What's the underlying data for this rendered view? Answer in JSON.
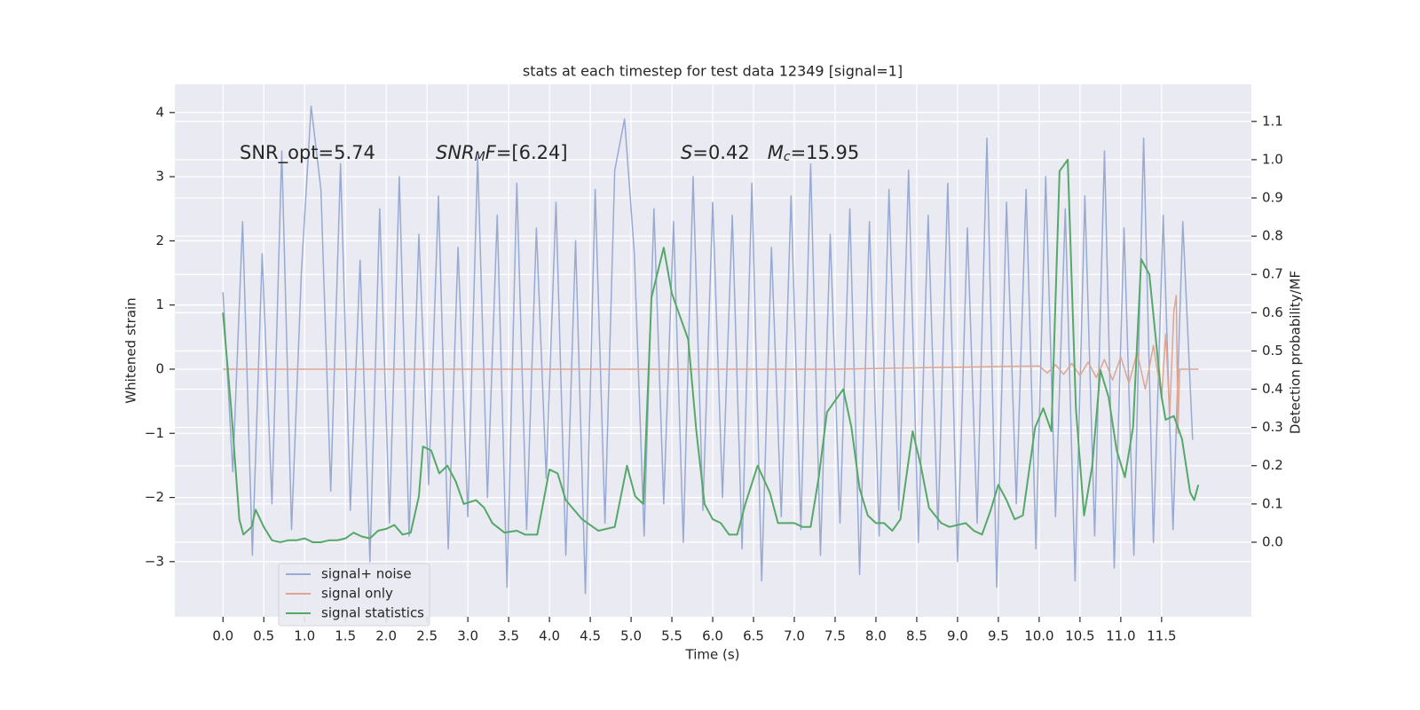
{
  "chart_data": {
    "type": "line",
    "title": "stats at each timestep for test data 12349 [signal=1]",
    "xlabel": "Time (s)",
    "ylabel": "Whitened strain",
    "y2label": "Detection probability/MF",
    "xlim": [
      -0.59,
      12.6
    ],
    "ylim": [
      -3.86,
      4.44
    ],
    "y2lim": [
      -0.195,
      1.197
    ],
    "xticks": [
      {
        "value": 0,
        "label": "0.0"
      },
      {
        "value": 0.5,
        "label": "0.5"
      },
      {
        "value": 1,
        "label": "1.0"
      },
      {
        "value": 1.5,
        "label": "1.5"
      },
      {
        "value": 2,
        "label": "2.0"
      },
      {
        "value": 2.5,
        "label": "2.5"
      },
      {
        "value": 3,
        "label": "3.0"
      },
      {
        "value": 3.5,
        "label": "3.5"
      },
      {
        "value": 4,
        "label": "4.0"
      },
      {
        "value": 4.5,
        "label": "4.5"
      },
      {
        "value": 5,
        "label": "5.0"
      },
      {
        "value": 5.5,
        "label": "5.5"
      },
      {
        "value": 6,
        "label": "6.0"
      },
      {
        "value": 6.5,
        "label": "6.5"
      },
      {
        "value": 7,
        "label": "7.0"
      },
      {
        "value": 7.5,
        "label": "7.5"
      },
      {
        "value": 8,
        "label": "8.0"
      },
      {
        "value": 8.5,
        "label": "8.5"
      },
      {
        "value": 9,
        "label": "9.0"
      },
      {
        "value": 9.5,
        "label": "9.5"
      },
      {
        "value": 10,
        "label": "10.0"
      },
      {
        "value": 10.5,
        "label": "10.5"
      },
      {
        "value": 11,
        "label": "11.0"
      },
      {
        "value": 11.5,
        "label": "11.5"
      }
    ],
    "yticks": [
      {
        "value": -3,
        "label": "−3"
      },
      {
        "value": -2,
        "label": "−2"
      },
      {
        "value": -1,
        "label": "−1"
      },
      0,
      1,
      2,
      3,
      4
    ],
    "y2ticks": [
      {
        "value": 0,
        "label": "0.0"
      },
      {
        "value": 0.1,
        "label": "0.1"
      },
      {
        "value": 0.2,
        "label": "0.2"
      },
      {
        "value": 0.3,
        "label": "0.3"
      },
      {
        "value": 0.4,
        "label": "0.4"
      },
      {
        "value": 0.5,
        "label": "0.5"
      },
      {
        "value": 0.6,
        "label": "0.6"
      },
      {
        "value": 0.7,
        "label": "0.7"
      },
      {
        "value": 0.8,
        "label": "0.8"
      },
      {
        "value": 0.9,
        "label": "0.9"
      },
      {
        "value": 1,
        "label": "1.0"
      },
      {
        "value": 1.1,
        "label": "1.1"
      }
    ],
    "grid": true,
    "legend_loc": "lower left",
    "annotations": [
      [
        {
          "text": "SNR_opt=5.74",
          "style": "normal"
        }
      ],
      [
        {
          "text": "SNR",
          "style": "italic"
        },
        {
          "text": "M",
          "style": "sub"
        },
        {
          "text": "F",
          "style": "italic"
        },
        {
          "text": "=[6.24]",
          "style": "normal"
        }
      ],
      [
        {
          "text": "S",
          "style": "italic"
        },
        {
          "text": "=0.42   ",
          "style": "normal"
        },
        {
          "text": "M",
          "style": "italic"
        },
        {
          "text": "c",
          "style": "sub"
        },
        {
          "text": "=15.95",
          "style": "normal"
        }
      ]
    ],
    "series": [
      {
        "name": "signal+ noise",
        "color": "#98aad1",
        "axis": "y",
        "x": [
          0,
          0.12,
          0.24,
          0.36,
          0.48,
          0.6,
          0.72,
          0.84,
          0.96,
          1.08,
          1.2,
          1.32,
          1.44,
          1.56,
          1.68,
          1.8,
          1.92,
          2.04,
          2.16,
          2.28,
          2.4,
          2.52,
          2.64,
          2.76,
          2.88,
          3.0,
          3.12,
          3.24,
          3.36,
          3.48,
          3.6,
          3.72,
          3.84,
          3.96,
          4.08,
          4.2,
          4.32,
          4.44,
          4.56,
          4.68,
          4.8,
          4.92,
          5.04,
          5.16,
          5.28,
          5.4,
          5.52,
          5.64,
          5.76,
          5.88,
          6.0,
          6.12,
          6.24,
          6.36,
          6.48,
          6.6,
          6.72,
          6.84,
          6.96,
          7.08,
          7.2,
          7.32,
          7.44,
          7.56,
          7.68,
          7.8,
          7.92,
          8.04,
          8.16,
          8.28,
          8.4,
          8.52,
          8.64,
          8.76,
          8.88,
          9.0,
          9.12,
          9.24,
          9.36,
          9.48,
          9.6,
          9.72,
          9.84,
          9.96,
          10.08,
          10.2,
          10.32,
          10.44,
          10.56,
          10.68,
          10.8,
          10.92,
          11.04,
          11.16,
          11.28,
          11.4,
          11.52,
          11.64,
          11.76,
          11.88
        ],
        "values": [
          1.2,
          -1.6,
          2.3,
          -2.9,
          1.8,
          -2.1,
          3.4,
          -2.5,
          1.5,
          4.1,
          2.8,
          -1.9,
          3.2,
          -2.2,
          1.7,
          -3.0,
          2.5,
          -2.4,
          3.0,
          -2.6,
          2.1,
          -1.8,
          2.7,
          -2.8,
          1.9,
          -2.3,
          3.3,
          -2.0,
          2.4,
          -3.4,
          2.9,
          -2.5,
          2.2,
          -1.7,
          2.6,
          -2.9,
          2.0,
          -3.5,
          2.8,
          -2.4,
          3.1,
          3.9,
          1.8,
          -2.6,
          2.5,
          -2.1,
          2.3,
          -2.7,
          3.0,
          -2.2,
          2.6,
          -2.0,
          2.4,
          -2.8,
          2.9,
          -3.3,
          1.9,
          -2.3,
          2.7,
          -2.5,
          3.2,
          -2.9,
          2.1,
          -2.4,
          2.5,
          -3.2,
          2.3,
          -2.6,
          2.8,
          -2.2,
          3.1,
          -2.7,
          2.4,
          -2.5,
          2.9,
          -3.0,
          2.2,
          -2.4,
          3.6,
          -3.4,
          2.6,
          -2.1,
          2.8,
          -2.8,
          3.0,
          -2.3,
          2.5,
          -3.3,
          2.7,
          -2.6,
          3.4,
          -3.1,
          2.2,
          -2.9,
          3.6,
          -2.7,
          2.4,
          -2.5,
          2.3,
          -1.1
        ]
      },
      {
        "name": "signal only",
        "color": "#dda592",
        "axis": "y",
        "x": [
          0,
          7.5,
          10.0,
          10.1,
          10.2,
          10.3,
          10.4,
          10.5,
          10.6,
          10.7,
          10.8,
          10.9,
          11.0,
          11.1,
          11.2,
          11.3,
          11.4,
          11.5,
          11.55,
          11.6,
          11.65,
          11.68,
          11.7,
          11.72,
          11.95
        ],
        "values": [
          0,
          0,
          0.05,
          -0.06,
          0.07,
          -0.08,
          0.09,
          -0.1,
          0.11,
          -0.13,
          0.15,
          -0.17,
          0.19,
          -0.22,
          0.26,
          -0.31,
          0.37,
          -0.45,
          0.55,
          -0.7,
          0.9,
          1.15,
          -1.0,
          0,
          0
        ]
      },
      {
        "name": "signal statistics",
        "color": "#55a868",
        "axis": "y2",
        "x": [
          0.0,
          0.1,
          0.2,
          0.25,
          0.35,
          0.4,
          0.5,
          0.6,
          0.7,
          0.8,
          0.9,
          1.0,
          1.1,
          1.2,
          1.3,
          1.4,
          1.5,
          1.6,
          1.7,
          1.8,
          1.9,
          2.0,
          2.1,
          2.2,
          2.3,
          2.4,
          2.45,
          2.55,
          2.65,
          2.75,
          2.85,
          2.95,
          3.1,
          3.2,
          3.3,
          3.45,
          3.6,
          3.7,
          3.85,
          4.0,
          4.1,
          4.2,
          4.4,
          4.6,
          4.8,
          4.95,
          5.05,
          5.15,
          5.25,
          5.4,
          5.5,
          5.7,
          5.8,
          5.9,
          6.0,
          6.1,
          6.2,
          6.3,
          6.4,
          6.55,
          6.7,
          6.8,
          6.9,
          7.0,
          7.1,
          7.2,
          7.3,
          7.4,
          7.5,
          7.6,
          7.7,
          7.8,
          7.9,
          8.0,
          8.1,
          8.2,
          8.3,
          8.45,
          8.55,
          8.65,
          8.8,
          8.9,
          9.1,
          9.2,
          9.3,
          9.4,
          9.5,
          9.6,
          9.7,
          9.8,
          9.95,
          10.05,
          10.15,
          10.25,
          10.35,
          10.45,
          10.55,
          10.65,
          10.75,
          10.85,
          10.95,
          11.05,
          11.15,
          11.25,
          11.35,
          11.5,
          11.55,
          11.65,
          11.75,
          11.85,
          11.9,
          11.95
        ],
        "values": [
          0.6,
          0.35,
          0.06,
          0.02,
          0.04,
          0.085,
          0.04,
          0.005,
          0.0,
          0.005,
          0.005,
          0.01,
          0.0,
          0.0,
          0.005,
          0.005,
          0.01,
          0.025,
          0.015,
          0.01,
          0.03,
          0.035,
          0.045,
          0.02,
          0.025,
          0.12,
          0.25,
          0.24,
          0.18,
          0.2,
          0.16,
          0.1,
          0.11,
          0.09,
          0.05,
          0.025,
          0.03,
          0.02,
          0.02,
          0.19,
          0.18,
          0.11,
          0.06,
          0.03,
          0.04,
          0.2,
          0.12,
          0.1,
          0.64,
          0.77,
          0.65,
          0.53,
          0.29,
          0.1,
          0.06,
          0.05,
          0.02,
          0.02,
          0.1,
          0.2,
          0.13,
          0.05,
          0.05,
          0.05,
          0.04,
          0.04,
          0.17,
          0.34,
          0.37,
          0.4,
          0.3,
          0.14,
          0.07,
          0.05,
          0.05,
          0.03,
          0.06,
          0.29,
          0.2,
          0.09,
          0.05,
          0.04,
          0.05,
          0.03,
          0.02,
          0.08,
          0.15,
          0.11,
          0.06,
          0.07,
          0.3,
          0.35,
          0.29,
          0.97,
          1.0,
          0.35,
          0.07,
          0.2,
          0.45,
          0.38,
          0.24,
          0.17,
          0.3,
          0.74,
          0.7,
          0.38,
          0.32,
          0.33,
          0.27,
          0.13,
          0.11,
          0.15
        ]
      }
    ]
  }
}
